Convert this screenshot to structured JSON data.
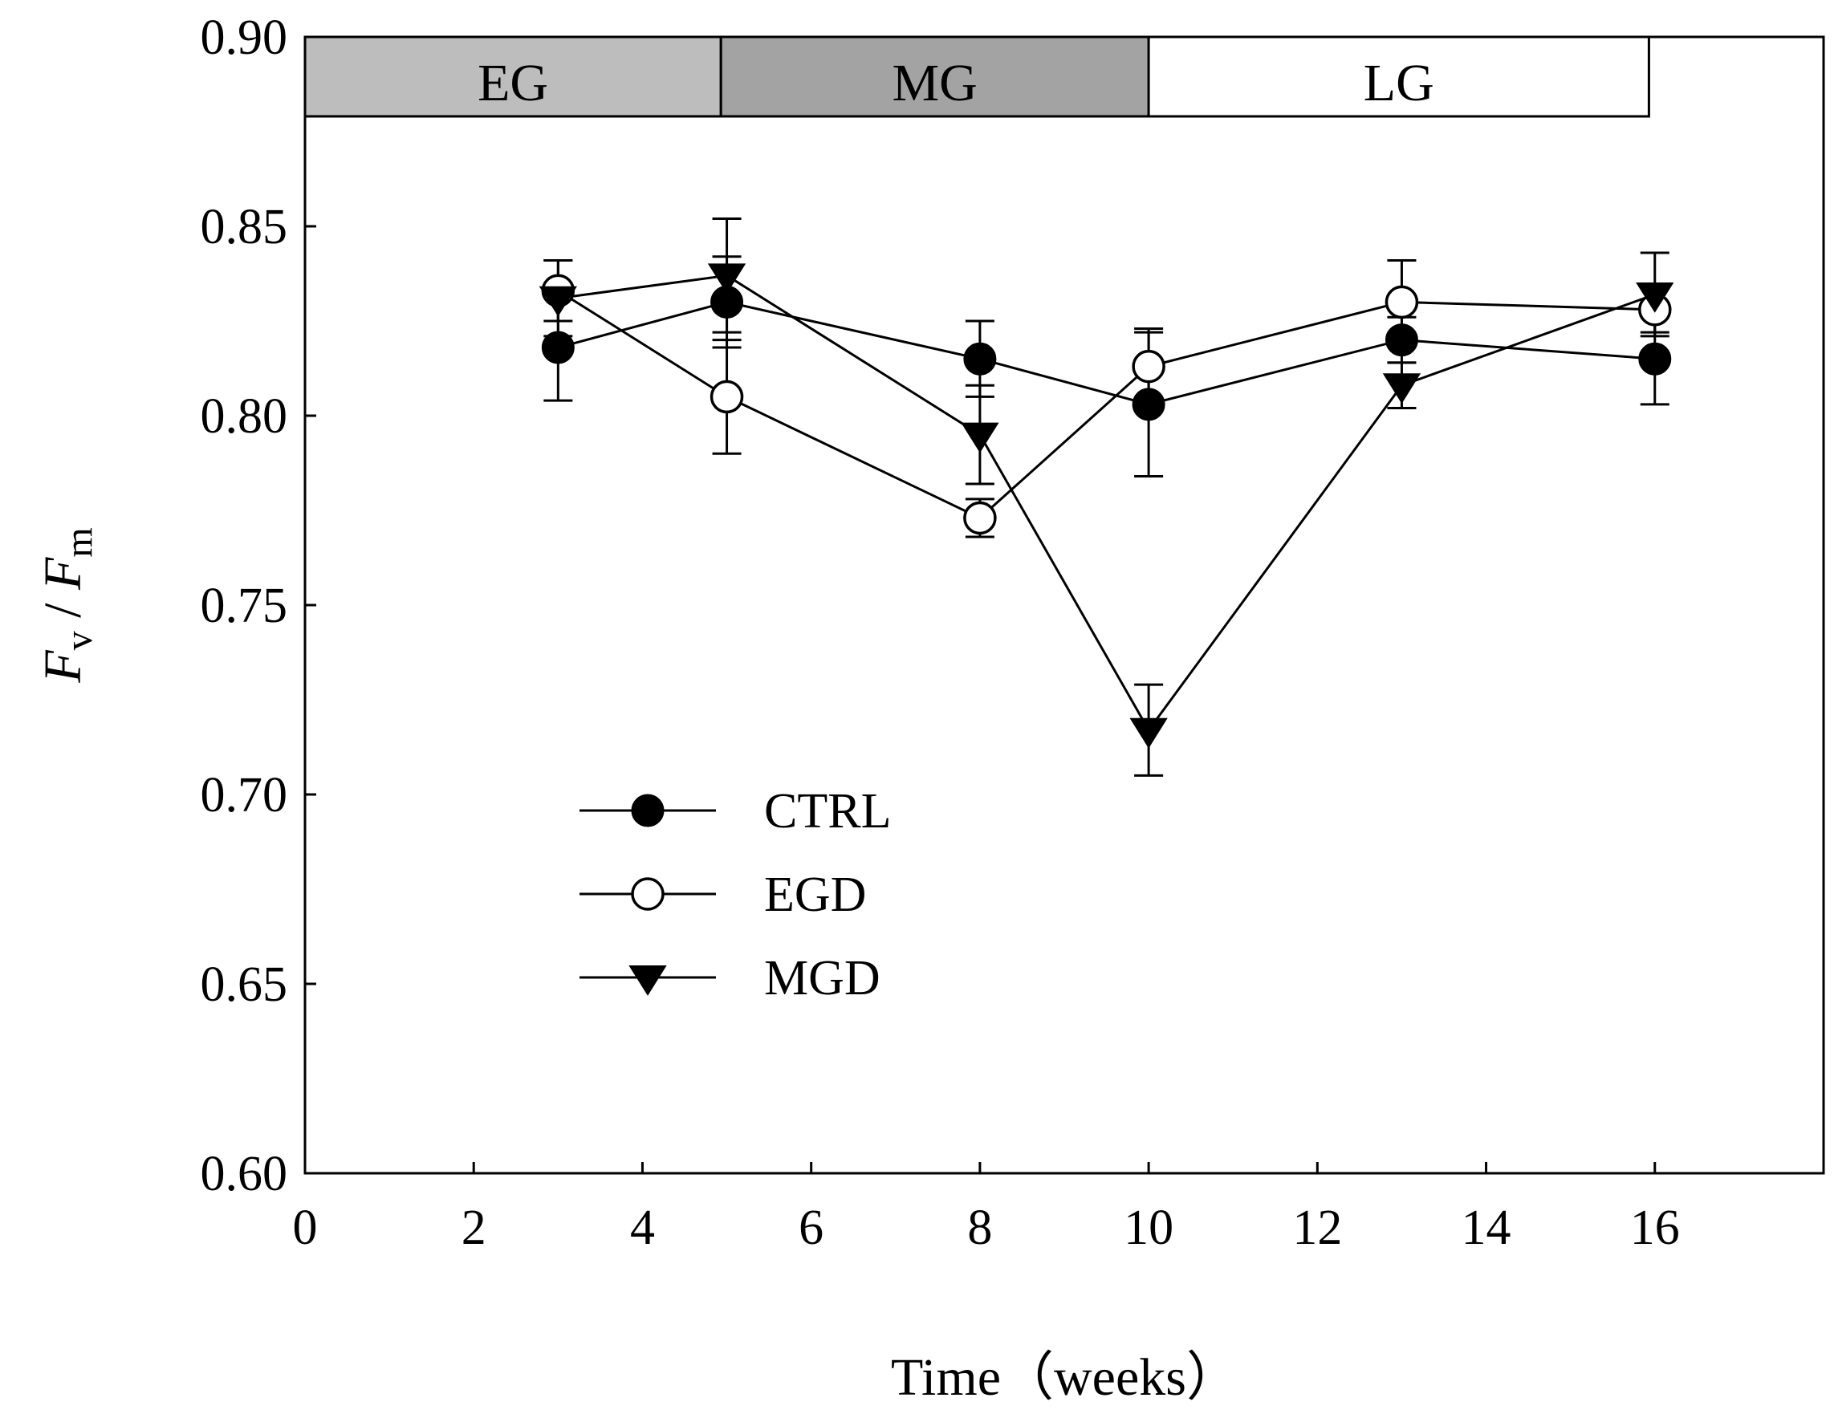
{
  "chart_data": {
    "type": "line",
    "title": "",
    "xlabel": "Time（weeks）",
    "ylabel_parts": [
      "F",
      "v",
      " / ",
      "F",
      "m"
    ],
    "xlim": [
      0,
      18
    ],
    "ylim": [
      0.6,
      0.9
    ],
    "xticks": [
      0,
      2,
      4,
      6,
      8,
      10,
      12,
      14,
      16
    ],
    "xtick_labels": [
      "0",
      "2",
      "4",
      "6",
      "8",
      "10",
      "12",
      "14",
      "16"
    ],
    "yticks": [
      0.6,
      0.65,
      0.7,
      0.75,
      0.8,
      0.85,
      0.9
    ],
    "ytick_labels": [
      "0.60",
      "0.65",
      "0.70",
      "0.75",
      "0.80",
      "0.85",
      "0.90"
    ],
    "x": [
      3,
      5,
      8,
      10,
      13,
      16
    ],
    "phases": [
      {
        "label": "EG",
        "start": 0,
        "end": 4.93,
        "color": "#bdbdbd"
      },
      {
        "label": "MG",
        "start": 4.93,
        "end": 10,
        "color": "#a3a3a3"
      },
      {
        "label": "LG",
        "start": 10,
        "end": 15.93,
        "color": "#ffffff"
      }
    ],
    "series": [
      {
        "name": "CTRL",
        "marker": "filled-circle",
        "values": [
          0.818,
          0.83,
          0.815,
          0.803,
          0.82,
          0.815
        ],
        "errors": [
          0.014,
          0.012,
          0.01,
          0.019,
          0.006,
          0.012
        ]
      },
      {
        "name": "EGD",
        "marker": "open-circle",
        "values": [
          0.833,
          0.805,
          0.773,
          0.813,
          0.83,
          0.828
        ],
        "errors": [
          0.008,
          0.015,
          0.005,
          0.01,
          0.011,
          0.006
        ]
      },
      {
        "name": "MGD",
        "marker": "filled-down-triangle",
        "values": [
          0.831,
          0.837,
          0.795,
          0.717,
          0.808,
          0.832
        ],
        "errors": [
          0.01,
          0.015,
          0.013,
          0.012,
          0.006,
          0.011
        ]
      }
    ],
    "legend_position": "lower-left-inside"
  }
}
